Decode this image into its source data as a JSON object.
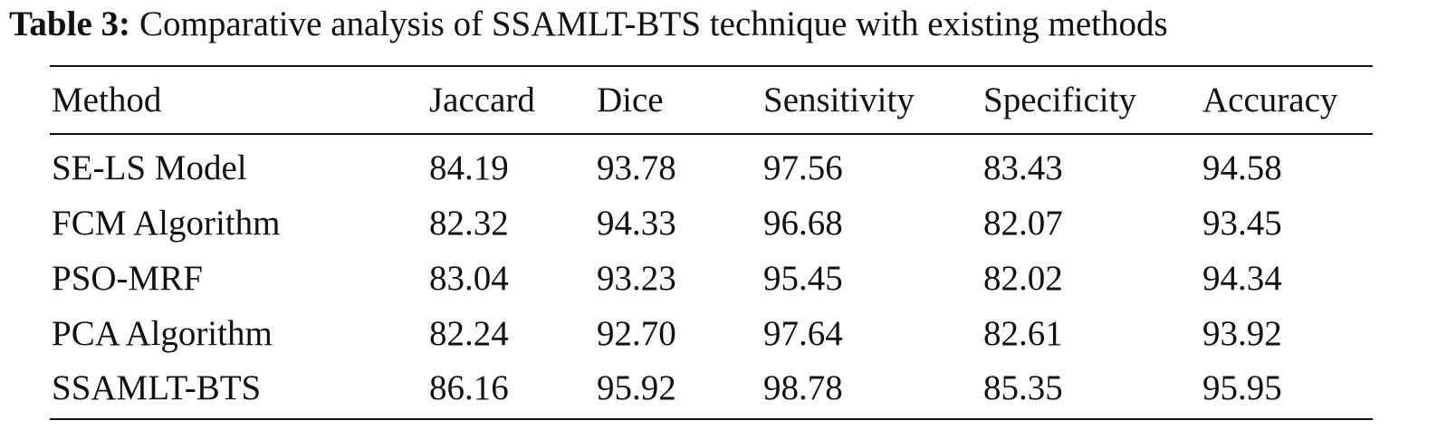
{
  "caption": {
    "label": "Table 3:",
    "text": "Comparative analysis of SSAMLT-BTS technique with existing methods"
  },
  "table": {
    "headers": [
      "Method",
      "Jaccard",
      "Dice",
      "Sensitivity",
      "Specificity",
      "Accuracy"
    ],
    "rows": [
      [
        "SE-LS Model",
        "84.19",
        "93.78",
        "97.56",
        "83.43",
        "94.58"
      ],
      [
        "FCM Algorithm",
        "82.32",
        "94.33",
        "96.68",
        "82.07",
        "93.45"
      ],
      [
        "PSO-MRF",
        "83.04",
        "93.23",
        "95.45",
        "82.02",
        "94.34"
      ],
      [
        "PCA Algorithm",
        "82.24",
        "92.70",
        "97.64",
        "82.61",
        "93.92"
      ],
      [
        "SSAMLT-BTS",
        "86.16",
        "95.92",
        "98.78",
        "85.35",
        "95.95"
      ]
    ]
  }
}
